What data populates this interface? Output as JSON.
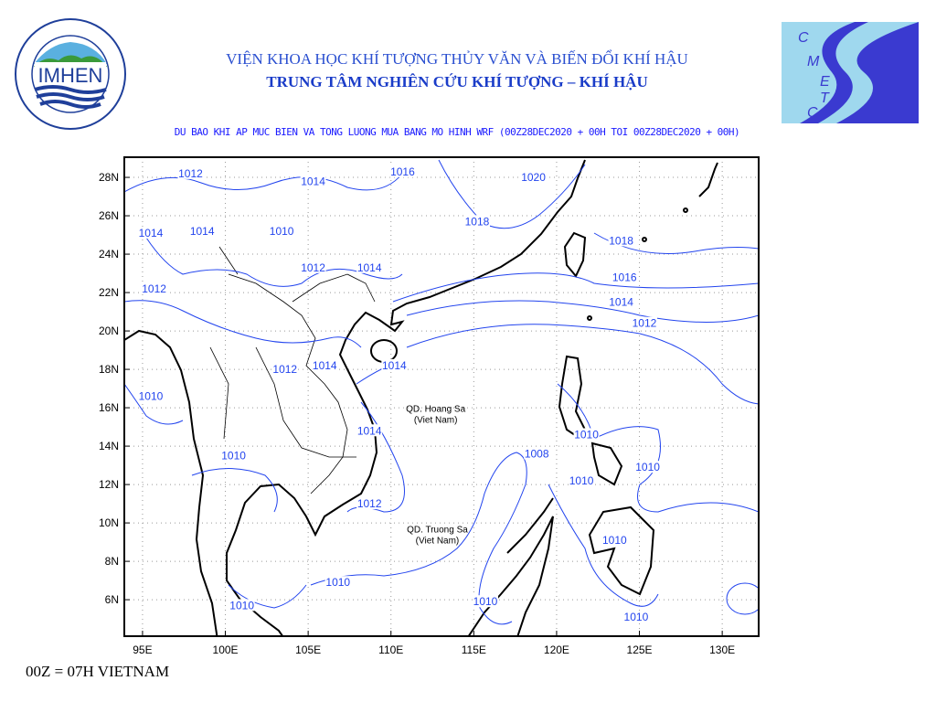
{
  "header": {
    "institute": "VIỆN KHOA HỌC KHÍ TƯỢNG THỦY VĂN VÀ BIẾN ĐỔI KHÍ HẬU",
    "center": "TRUNG TÂM NGHIÊN CỨU KHÍ TƯỢNG – KHÍ HẬU",
    "map_title": "DU BAO KHI AP MUC BIEN VA TONG LUONG MUA BANG MO HINH WRF (00Z28DEC2020 + 00H TOI 00Z28DEC2020 + 00H)"
  },
  "logos": {
    "left": {
      "text": "IMHEN",
      "ring": "VIỆN KHOA HỌC KHÍ TƯỢNG THỦY VĂN VÀ BIẾN ĐỔI KHÍ HẬU"
    },
    "right": {
      "text": "CMETC"
    }
  },
  "map": {
    "lon_ticks": [
      "95E",
      "100E",
      "105E",
      "110E",
      "115E",
      "120E",
      "125E",
      "130E"
    ],
    "lon_values": [
      95,
      100,
      105,
      110,
      115,
      120,
      125,
      130
    ],
    "lat_ticks": [
      "28N",
      "26N",
      "24N",
      "22N",
      "20N",
      "18N",
      "16N",
      "14N",
      "12N",
      "10N",
      "8N",
      "6N"
    ],
    "lat_values": [
      28,
      26,
      24,
      22,
      20,
      18,
      16,
      14,
      12,
      10,
      8,
      6
    ],
    "lon_range": [
      93.9,
      132.2
    ],
    "lat_range": [
      4.1,
      29.05
    ],
    "contour_color": "#2244ee",
    "contour_labels": [
      {
        "v": "1012",
        "lon": 97.9,
        "lat": 28.2
      },
      {
        "v": "1016",
        "lon": 110.7,
        "lat": 28.3
      },
      {
        "v": "1020",
        "lon": 118.6,
        "lat": 28.0
      },
      {
        "v": "1014",
        "lon": 105.3,
        "lat": 27.8
      },
      {
        "v": "1018",
        "lon": 115.2,
        "lat": 25.7
      },
      {
        "v": "1014",
        "lon": 95.5,
        "lat": 25.1
      },
      {
        "v": "1014",
        "lon": 98.6,
        "lat": 25.2
      },
      {
        "v": "1010",
        "lon": 103.4,
        "lat": 25.2
      },
      {
        "v": "1018",
        "lon": 123.9,
        "lat": 24.7
      },
      {
        "v": "1012",
        "lon": 105.3,
        "lat": 23.3
      },
      {
        "v": "1014",
        "lon": 108.7,
        "lat": 23.3
      },
      {
        "v": "1016",
        "lon": 124.1,
        "lat": 22.8
      },
      {
        "v": "1012",
        "lon": 95.7,
        "lat": 22.2
      },
      {
        "v": "1014",
        "lon": 123.9,
        "lat": 21.5
      },
      {
        "v": "1012",
        "lon": 125.3,
        "lat": 20.4
      },
      {
        "v": "1014",
        "lon": 110.2,
        "lat": 18.2
      },
      {
        "v": "1012",
        "lon": 103.6,
        "lat": 18.0
      },
      {
        "v": "1014",
        "lon": 106.0,
        "lat": 18.2
      },
      {
        "v": "1010",
        "lon": 95.5,
        "lat": 16.6
      },
      {
        "v": "1014",
        "lon": 108.7,
        "lat": 14.8
      },
      {
        "v": "1010",
        "lon": 121.8,
        "lat": 14.6
      },
      {
        "v": "1008",
        "lon": 118.8,
        "lat": 13.6
      },
      {
        "v": "1010",
        "lon": 100.5,
        "lat": 13.5
      },
      {
        "v": "1010",
        "lon": 125.5,
        "lat": 12.9
      },
      {
        "v": "1010",
        "lon": 121.5,
        "lat": 12.2
      },
      {
        "v": "1012",
        "lon": 108.7,
        "lat": 11.0
      },
      {
        "v": "1010",
        "lon": 123.5,
        "lat": 9.1
      },
      {
        "v": "1010",
        "lon": 106.8,
        "lat": 6.9
      },
      {
        "v": "1010",
        "lon": 101.0,
        "lat": 5.7
      },
      {
        "v": "1010",
        "lon": 115.7,
        "lat": 5.9
      },
      {
        "v": "1010",
        "lon": 124.8,
        "lat": 5.1
      }
    ],
    "places": [
      {
        "name": "QD. Hoang Sa",
        "sub": "(Viet Nam)",
        "lon": 112.7,
        "lat": 15.8
      },
      {
        "name": "QD. Truong Sa",
        "sub": "(Viet Nam)",
        "lon": 112.8,
        "lat": 9.5
      }
    ]
  },
  "footer": {
    "note": "00Z = 07H VIETNAM"
  }
}
